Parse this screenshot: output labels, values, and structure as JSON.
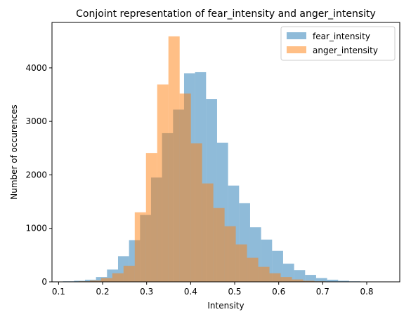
{
  "chart_data": {
    "type": "bar",
    "title": "Conjoint representation of fear_intensity and anger_intensity",
    "xlabel": "Intensity",
    "ylabel": "Number of occurences",
    "xlim": [
      0.085,
      0.875
    ],
    "ylim": [
      0,
      4850
    ],
    "xticks": [
      0.1,
      0.2,
      0.3,
      0.4,
      0.5,
      0.6,
      0.7,
      0.8
    ],
    "xtick_labels": [
      "0.1",
      "0.2",
      "0.3",
      "0.4",
      "0.5",
      "0.6",
      "0.7",
      "0.8"
    ],
    "yticks": [
      0,
      1000,
      2000,
      3000,
      4000
    ],
    "ytick_labels": [
      "0",
      "1000",
      "2000",
      "3000",
      "4000"
    ],
    "grid": false,
    "legend": "top-right",
    "series": [
      {
        "name": "fear_intensity",
        "color": "#1f77b4",
        "alpha": 0.5,
        "bin_edges": [
          0.11,
          0.135,
          0.16,
          0.185,
          0.21,
          0.235,
          0.26,
          0.285,
          0.31,
          0.335,
          0.36,
          0.385,
          0.41,
          0.435,
          0.46,
          0.485,
          0.51,
          0.535,
          0.56,
          0.585,
          0.61,
          0.635,
          0.66,
          0.685,
          0.71,
          0.735,
          0.76,
          0.785,
          0.81,
          0.835,
          0.86
        ],
        "counts": [
          10,
          20,
          40,
          90,
          230,
          480,
          780,
          1250,
          1950,
          2780,
          3220,
          3900,
          3920,
          3420,
          2600,
          1800,
          1470,
          1020,
          790,
          580,
          340,
          220,
          130,
          70,
          40,
          20,
          10,
          5,
          3,
          2
        ]
      },
      {
        "name": "anger_intensity",
        "color": "#ff7f0e",
        "alpha": 0.5,
        "bin_edges": [
          0.12,
          0.1455,
          0.171,
          0.1965,
          0.222,
          0.2475,
          0.273,
          0.2985,
          0.324,
          0.3495,
          0.375,
          0.4005,
          0.426,
          0.4515,
          0.477,
          0.5025,
          0.528,
          0.5535,
          0.579,
          0.6045,
          0.63,
          0.6555,
          0.681,
          0.7065,
          0.732,
          0.7575,
          0.783,
          0.8085,
          0.834,
          0.8595
        ],
        "counts": [
          5,
          10,
          25,
          70,
          160,
          300,
          1300,
          2410,
          3690,
          4590,
          3520,
          2590,
          1840,
          1380,
          1040,
          700,
          450,
          280,
          160,
          90,
          45,
          20,
          10,
          5,
          3,
          2,
          1,
          1,
          1
        ]
      }
    ]
  }
}
